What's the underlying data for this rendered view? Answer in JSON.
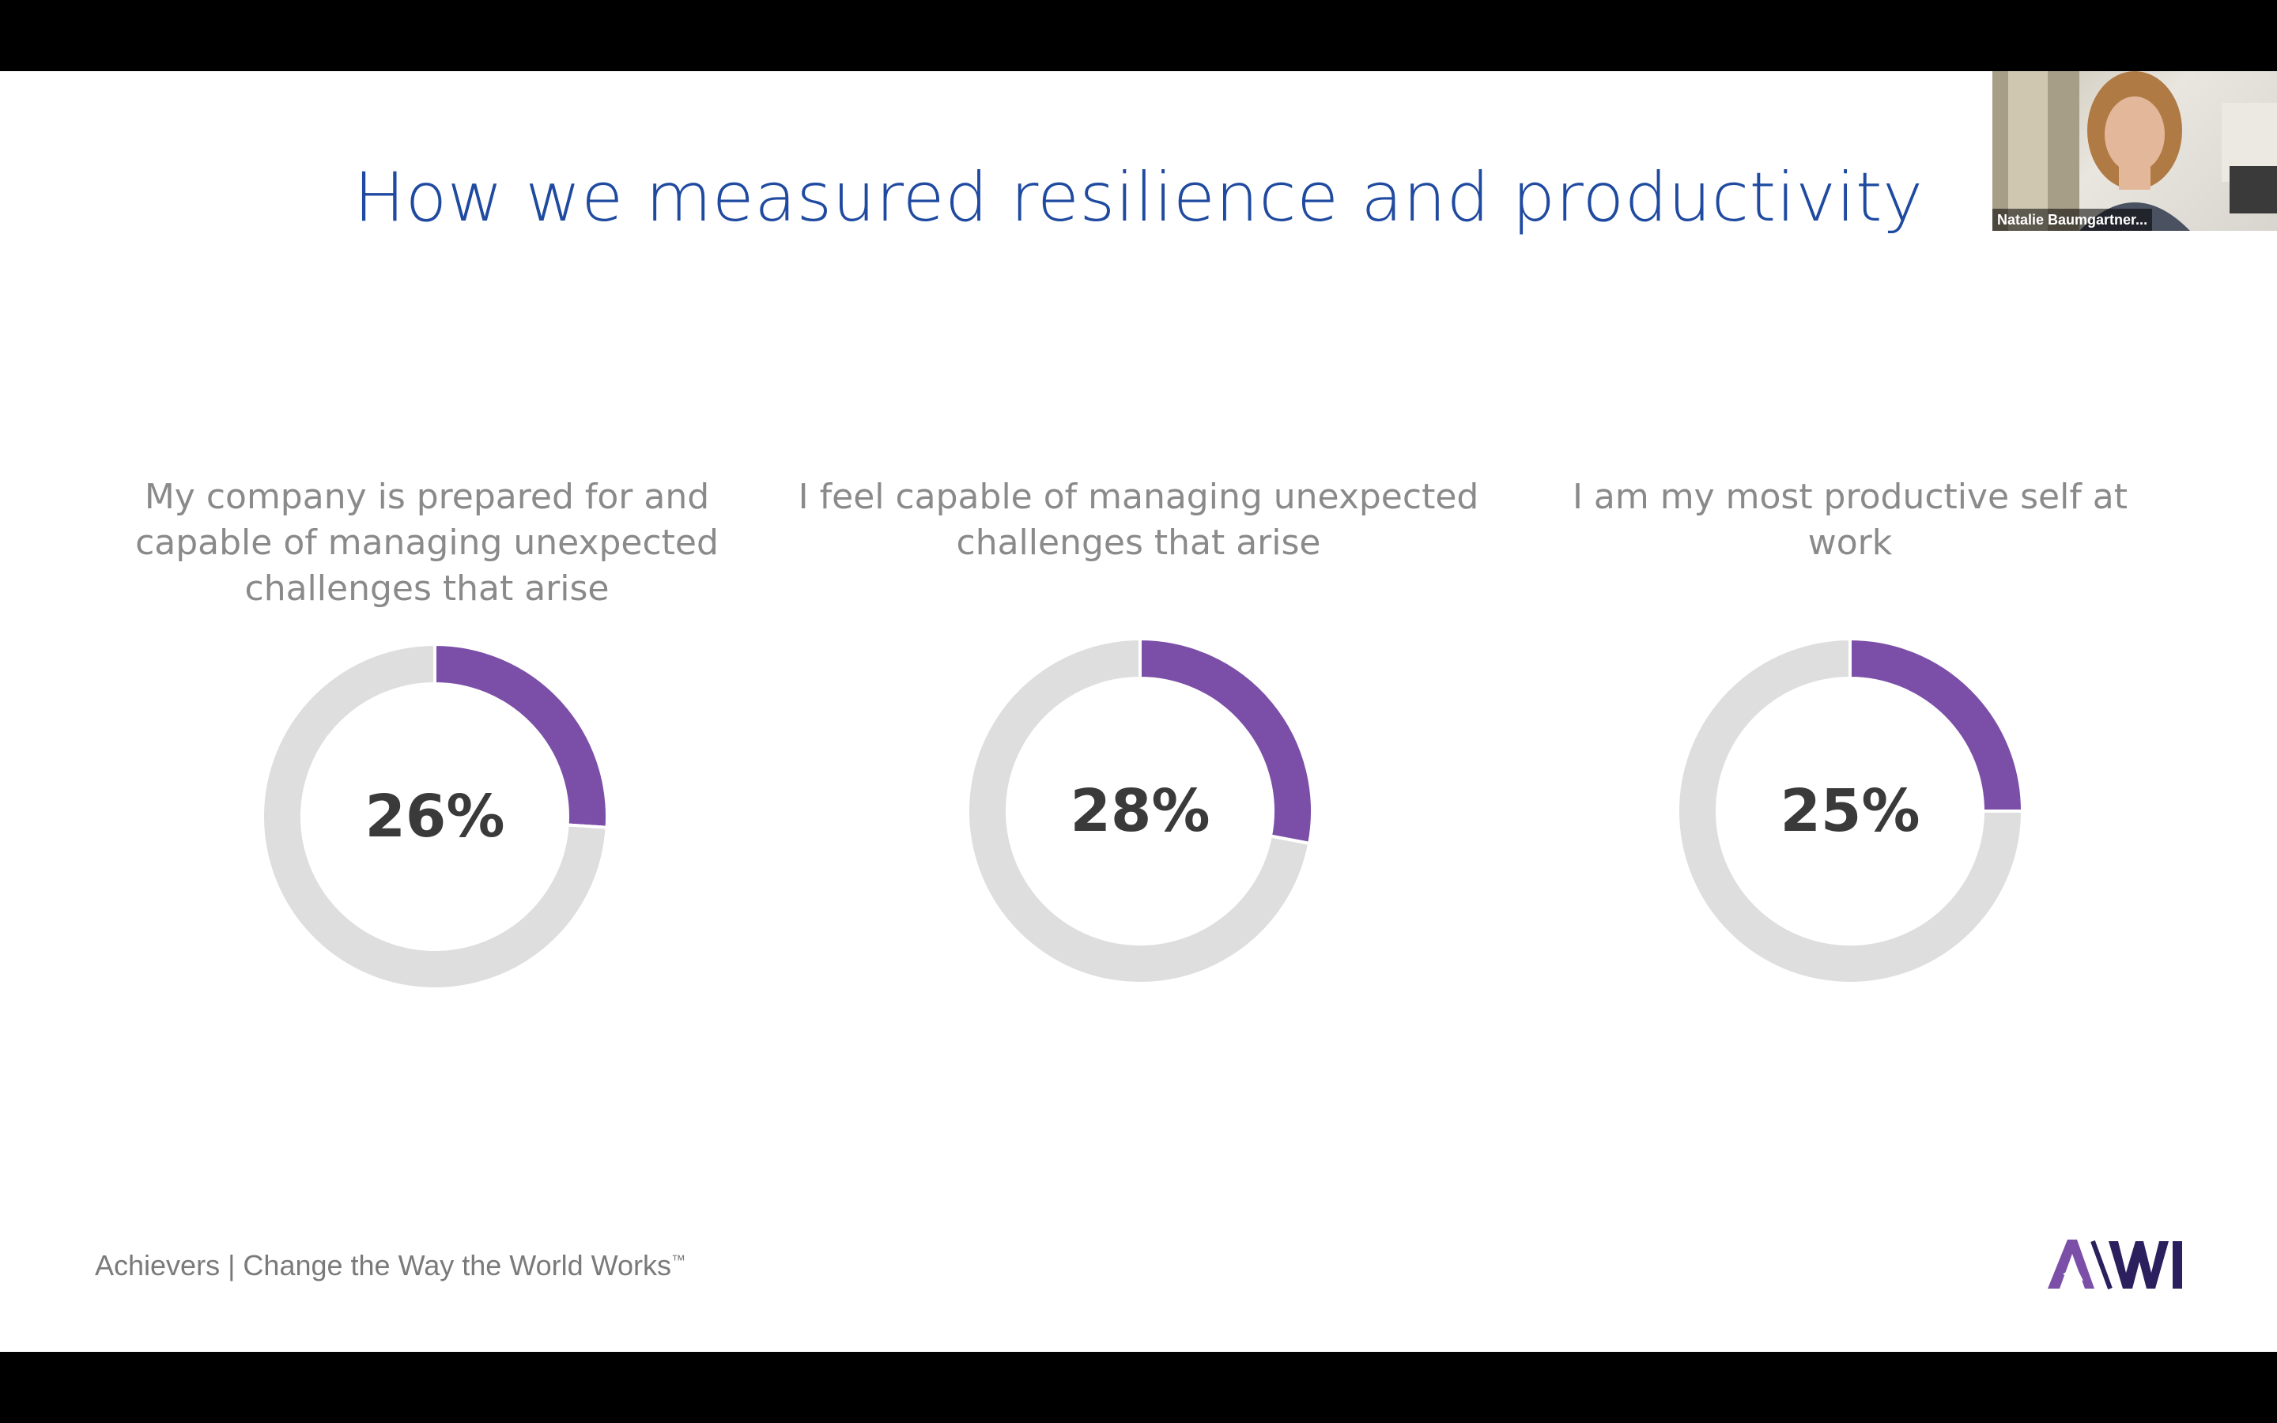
{
  "slide": {
    "title": "How we measured resilience and productivity",
    "footer_text": "Achievers | Change the Way the World Works",
    "footer_trademark": "™",
    "logo_text": "AWI"
  },
  "video_tile": {
    "participant_name": "Natalie Baumgartner..."
  },
  "colors": {
    "title": "#1f4aa0",
    "accent_purple": "#7b4fa8",
    "ring_gray": "#dedede",
    "logo_dark": "#2b1f5e"
  },
  "chart_data": [
    {
      "type": "pie",
      "title": "My company is prepared for and capable of managing unexpected challenges that arise",
      "values": [
        26,
        74
      ],
      "value_label": "26%"
    },
    {
      "type": "pie",
      "title": "I feel capable of managing unexpected challenges that arise",
      "values": [
        28,
        72
      ],
      "value_label": "28%"
    },
    {
      "type": "pie",
      "title": "I am my most productive self at work",
      "values": [
        25,
        75
      ],
      "value_label": "25%"
    }
  ]
}
